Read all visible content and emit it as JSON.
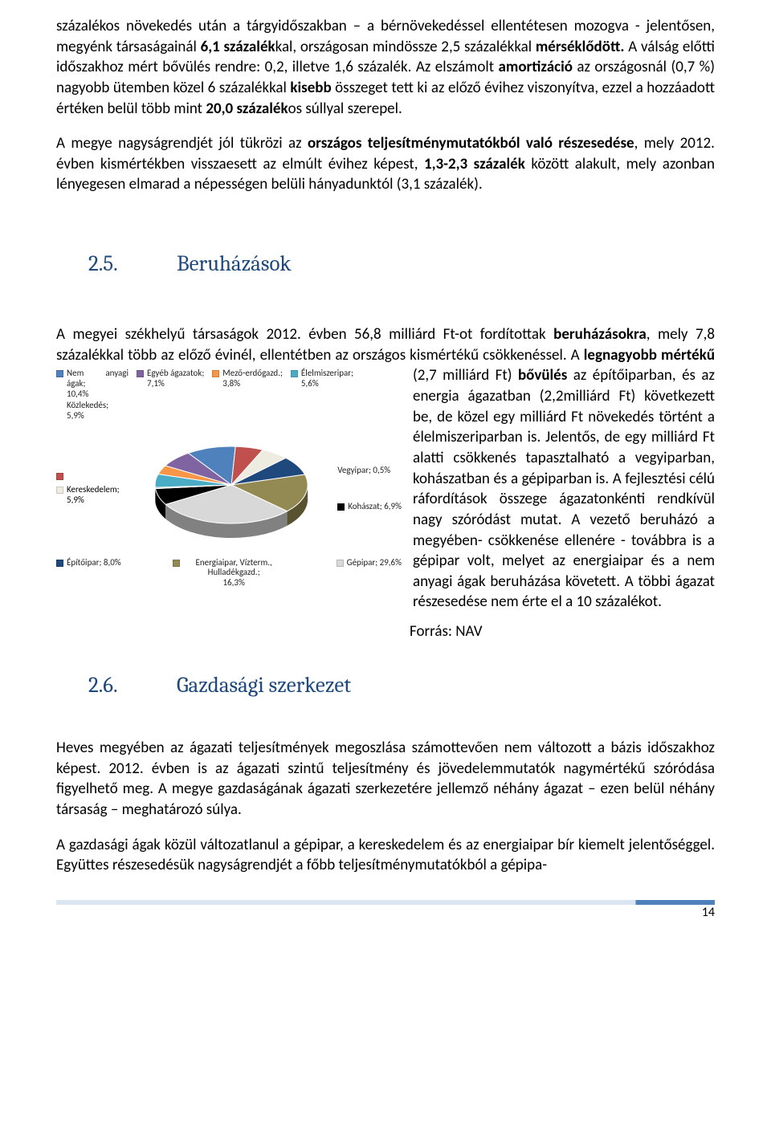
{
  "paragraphs": {
    "p1": "százalékos növekedés után a tárgyidőszakban – a bérnövekedéssel ellentétesen mozogva - jelentősen, megyénk társaságainál ",
    "p1b": "6,1 százalék",
    "p1c": "kal, országosan mindössze 2,5 százalékkal ",
    "p1d": "mérséklődött.",
    "p1e": " A válság előtti időszakhoz mért bővülés rendre: 0,2, illetve 1,6 százalék. Az elszámolt ",
    "p1f": "amortizáció",
    "p1g": " az országosnál (0,7 %) nagyobb ütemben közel 6 százalékkal ",
    "p1h": "kisebb",
    "p1i": " összeget tett ki az előző évihez viszonyítva, ezzel a hozzáadott értéken belül több mint ",
    "p1j": "20,0 százalék",
    "p1k": "os súllyal szerepel.",
    "p2a": "A megye nagyságrendjét jól tükrözi az ",
    "p2b": "országos teljesítménymutatókból való részesedése",
    "p2c": ", mely 2012. évben kismértékben visszaesett az elmúlt évihez képest, ",
    "p2d": "1,3-2,3 százalék",
    "p2e": " között alakult, mely azonban lényegesen elmarad a népességen belüli hányadunktól (3,1 százalék).",
    "sec25_num": "2.5.",
    "sec25_title": "Beruházások",
    "p3a": "A megyei székhelyű társaságok 2012. évben 56,8 milliárd Ft-ot fordítottak ",
    "p3b": "beruházásokra",
    "p3c": ", mely 7,8 százalékkal több az előző évinél, ellentétben az országos kismértékű csökkenéssel. A ",
    "p3d": "legnagyobb mértékű",
    "p3e": " (2,7 milliárd Ft) ",
    "p3f": "bővülés",
    "p3g": " az építőiparban,  és az energia ágazatban (2,2milliárd Ft) következett be, de közel egy milliárd Ft növekedés történt a élelmiszeriparban is. Jelentős, de egy milliárd Ft alatti csökkenés tapasztalható a vegyiparban, kohászatban és a gépiparban is. A fejlesztési célú ráfordítások összege ágazatonkénti rendkívül nagy szóródást mutat. A vezető beruházó a megyében- csökkenése ellenére - továbbra is a gépipar volt, melyet az energiaipar és a nem anyagi ágak beruházása követett. A többi ágazat részesedése nem érte el a 10 százalékot.",
    "forras": "Forrás: NAV",
    "sec26_num": "2.6.",
    "sec26_title": "Gazdasági szerkezet",
    "p4": "Heves megyében az ágazati teljesítmények megoszlása számottevően nem változott a bázis időszakhoz képest. 2012. évben is az ágazati szintű teljesítmény és jövedelemmutatók nagymértékű szóródása figyelhető meg. A megye gazdaságának ágazati szerkezetére jellemző néhány ágazat – ezen belül néhány társaság – meghatározó súlya.",
    "p5": "A gazdasági ágak közül változatlanul a gépipar, a kereskedelem és az energiaipar bír kiemelt jelentőséggel. Együttes részesedésük nagyságrendjét a főbb teljesítménymutatókból a gépipa-"
  },
  "pie": {
    "type": "pie",
    "background_color": "#ffffff",
    "label_fontsize": 11,
    "slices": [
      {
        "label": "Nem anyagi ágak;",
        "value_label": "10,4%",
        "value": 10.4,
        "color": "#4f81bd"
      },
      {
        "label": "Közlekedés; 5,9%",
        "value_label": "",
        "value": 5.9,
        "color": "#c0504d"
      },
      {
        "label": "Kereskedelem;",
        "value_label": "5,9%",
        "value": 5.9,
        "color": "#eeece1"
      },
      {
        "label": "Építőipar; 8,0%",
        "value_label": "",
        "value": 8.0,
        "color": "#1f497d"
      },
      {
        "label": "Energiaipar, Vízterm., Hulladékgazd.;",
        "value_label": "16,3%",
        "value": 16.3,
        "color": "#938953"
      },
      {
        "label": "Gépipar; 29,6%",
        "value_label": "",
        "value": 29.6,
        "color": "#d8d8d8"
      },
      {
        "label": "Kohászat; 6,9%",
        "value_label": "",
        "value": 6.9,
        "color": "#000000"
      },
      {
        "label": "Vegyipar; 0,5%",
        "value_label": "",
        "value": 0.5,
        "color": "#a5a5a5"
      },
      {
        "label": "Élelmiszeripar;",
        "value_label": "5,6%",
        "value": 5.6,
        "color": "#4bacc6"
      },
      {
        "label": "Mező-erdőgazd.;",
        "value_label": "3,8%",
        "value": 3.8,
        "color": "#f79646"
      },
      {
        "label": "Egyéb ágazatok;",
        "value_label": "7,1%",
        "value": 7.1,
        "color": "#8064a2"
      }
    ]
  },
  "page_number": "14"
}
